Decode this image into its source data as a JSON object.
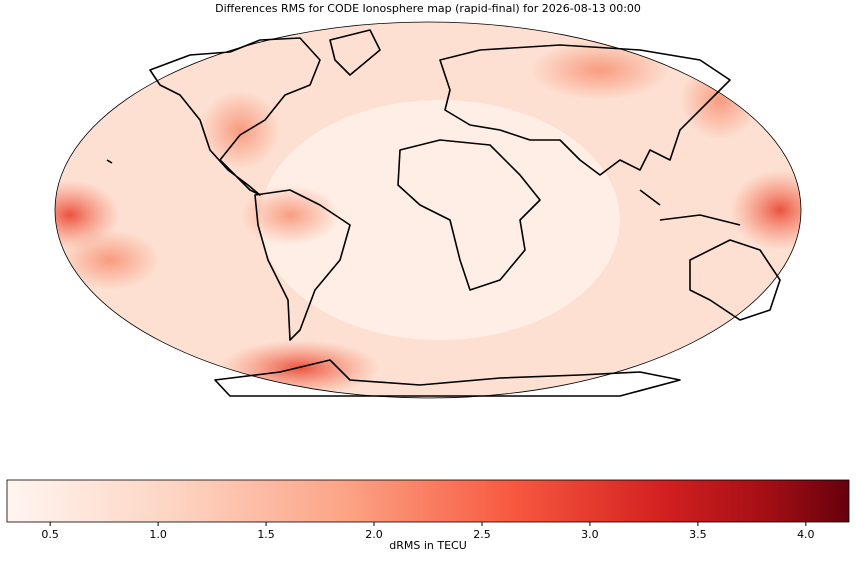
{
  "chart_data": {
    "type": "map",
    "title": "Differences RMS for CODE Ionosphere map (rapid-final) for 2026-08-13 00:00",
    "colorbar": {
      "label": "dRMS in TECU",
      "clim": [
        0.3,
        4.2
      ],
      "ticks": [
        0.5,
        {
          "value": 1,
          "label": "1.0"
        },
        1.5,
        {
          "value": 2,
          "label": "2.0"
        },
        2.5,
        {
          "value": 3,
          "label": "3.0"
        },
        3.5,
        {
          "value": 4,
          "label": "4.0"
        }
      ]
    }
  }
}
